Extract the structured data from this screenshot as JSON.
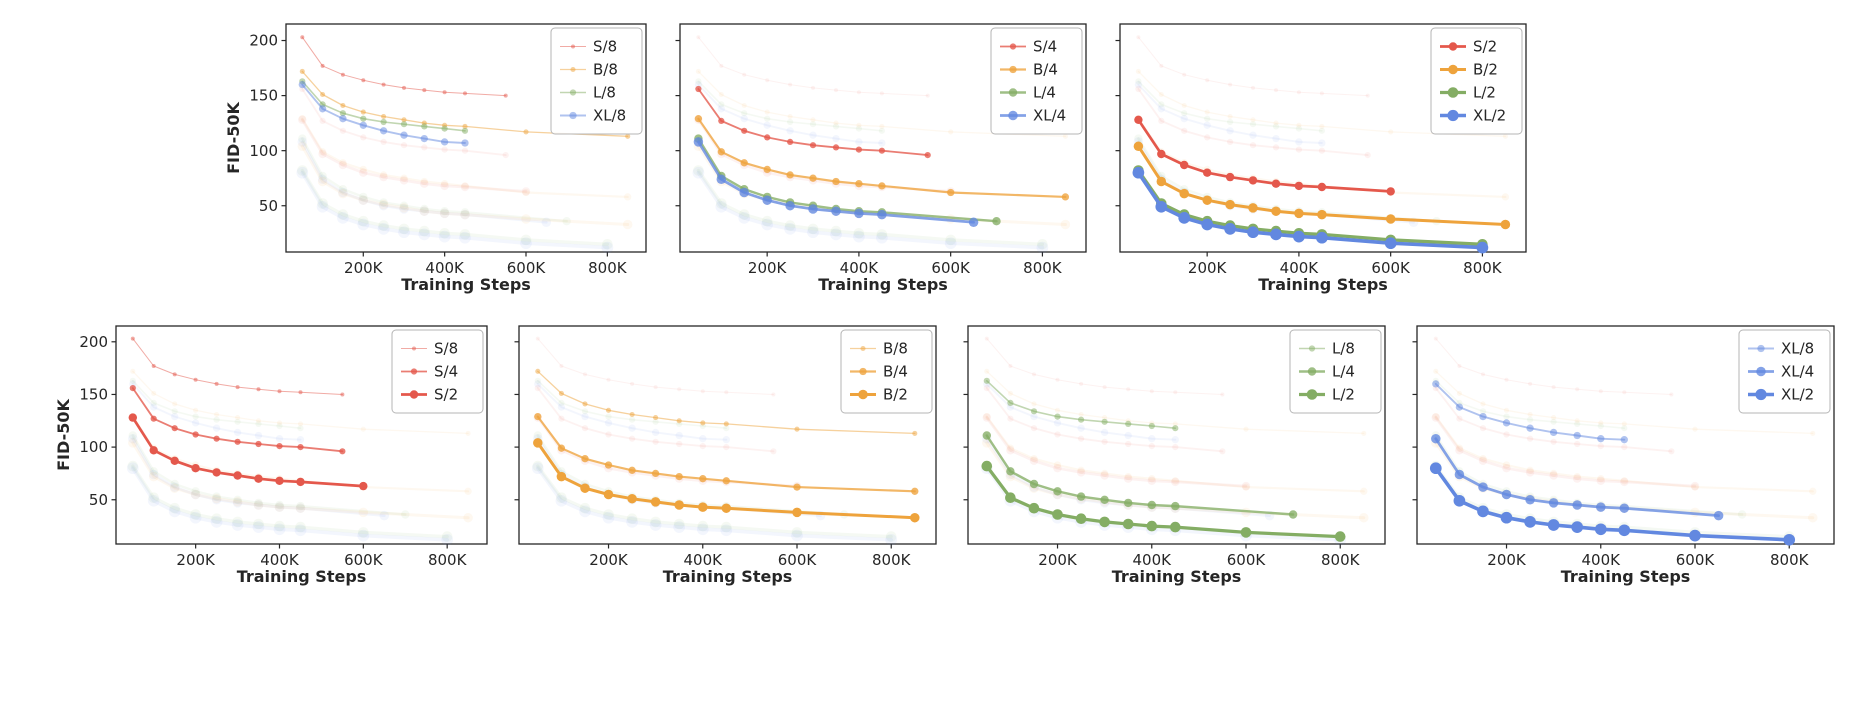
{
  "chart_data": {
    "type": "line",
    "title": "",
    "xlabel": "Training Steps",
    "ylabel": "FID-50K",
    "x_unit": "thousand training steps (K)",
    "xlim": [
      10,
      895
    ],
    "ylim": [
      8,
      215
    ],
    "xticks": [
      200,
      400,
      600,
      800
    ],
    "xtick_labels": [
      "200K",
      "400K",
      "600K",
      "800K"
    ],
    "yticks": [
      50,
      100,
      150,
      200
    ],
    "ytick_labels": [
      "50",
      "100",
      "150",
      "200"
    ],
    "grid": false,
    "legend_position": "upper right",
    "model_colors": {
      "S": "#e4584c",
      "B": "#eea33c",
      "L": "#84ad64",
      "XL": "#6288e0"
    },
    "series": [
      {
        "name": "S/8",
        "model": "S",
        "patch": 8,
        "color": "#e4584c",
        "x": [
          50,
          100,
          150,
          200,
          250,
          300,
          350,
          400,
          450,
          550
        ],
        "y": [
          203,
          177,
          169,
          164,
          160,
          157,
          155,
          153,
          152,
          150
        ]
      },
      {
        "name": "B/8",
        "model": "B",
        "patch": 8,
        "color": "#eea33c",
        "x": [
          50,
          100,
          150,
          200,
          250,
          300,
          350,
          400,
          450,
          600,
          850
        ],
        "y": [
          172,
          151,
          141,
          135,
          131,
          128,
          125,
          123,
          122,
          117,
          113
        ]
      },
      {
        "name": "L/8",
        "model": "L",
        "patch": 8,
        "color": "#84ad64",
        "x": [
          50,
          100,
          150,
          200,
          250,
          300,
          350,
          400,
          450
        ],
        "y": [
          163,
          142,
          134,
          129,
          126,
          124,
          122,
          120,
          118
        ]
      },
      {
        "name": "XL/8",
        "model": "XL",
        "patch": 8,
        "color": "#6288e0",
        "x": [
          50,
          100,
          150,
          200,
          250,
          300,
          350,
          400,
          450
        ],
        "y": [
          160,
          138,
          129,
          123,
          118,
          114,
          111,
          108,
          107
        ]
      },
      {
        "name": "S/4",
        "model": "S",
        "patch": 4,
        "color": "#e4584c",
        "x": [
          50,
          100,
          150,
          200,
          250,
          300,
          350,
          400,
          450,
          550
        ],
        "y": [
          156,
          127,
          118,
          112,
          108,
          105,
          103,
          101,
          100,
          96
        ]
      },
      {
        "name": "B/4",
        "model": "B",
        "patch": 4,
        "color": "#eea33c",
        "x": [
          50,
          100,
          150,
          200,
          250,
          300,
          350,
          400,
          450,
          600,
          850
        ],
        "y": [
          129,
          99,
          89,
          83,
          78,
          75,
          72,
          70,
          68,
          62,
          58
        ]
      },
      {
        "name": "L/4",
        "model": "L",
        "patch": 4,
        "color": "#84ad64",
        "x": [
          50,
          100,
          150,
          200,
          250,
          300,
          350,
          400,
          450,
          700
        ],
        "y": [
          111,
          77,
          65,
          58,
          53,
          50,
          47,
          45,
          44,
          36
        ]
      },
      {
        "name": "XL/4",
        "model": "XL",
        "patch": 4,
        "color": "#6288e0",
        "x": [
          50,
          100,
          150,
          200,
          250,
          300,
          350,
          400,
          450,
          650
        ],
        "y": [
          108,
          74,
          62,
          55,
          50,
          47,
          45,
          43,
          42,
          35
        ]
      },
      {
        "name": "S/2",
        "model": "S",
        "patch": 2,
        "color": "#e4584c",
        "x": [
          50,
          100,
          150,
          200,
          250,
          300,
          350,
          400,
          450,
          600
        ],
        "y": [
          128,
          97,
          87,
          80,
          76,
          73,
          70,
          68,
          67,
          63
        ]
      },
      {
        "name": "B/2",
        "model": "B",
        "patch": 2,
        "color": "#eea33c",
        "x": [
          50,
          100,
          150,
          200,
          250,
          300,
          350,
          400,
          450,
          600,
          850
        ],
        "y": [
          104,
          72,
          61,
          55,
          51,
          48,
          45,
          43,
          42,
          38,
          33
        ]
      },
      {
        "name": "L/2",
        "model": "L",
        "patch": 2,
        "color": "#84ad64",
        "x": [
          50,
          100,
          150,
          200,
          250,
          300,
          350,
          400,
          450,
          600,
          800
        ],
        "y": [
          82,
          52,
          42,
          36,
          32,
          29,
          27,
          25,
          24,
          19,
          15
        ]
      },
      {
        "name": "XL/2",
        "model": "XL",
        "patch": 2,
        "color": "#6288e0",
        "x": [
          50,
          100,
          150,
          200,
          250,
          300,
          350,
          400,
          450,
          600,
          800
        ],
        "y": [
          80,
          49,
          39,
          33,
          29,
          26,
          24,
          22,
          21,
          16,
          12
        ]
      }
    ],
    "panels": [
      {
        "name": "panel-patch-8",
        "row": "top",
        "legend": [
          "S/8",
          "B/8",
          "L/8",
          "XL/8"
        ],
        "show_y_axis": true
      },
      {
        "name": "panel-patch-4",
        "row": "top",
        "legend": [
          "S/4",
          "B/4",
          "L/4",
          "XL/4"
        ],
        "show_y_axis": false
      },
      {
        "name": "panel-patch-2",
        "row": "top",
        "legend": [
          "S/2",
          "B/2",
          "L/2",
          "XL/2"
        ],
        "show_y_axis": false
      },
      {
        "name": "panel-model-S",
        "row": "bottom",
        "legend": [
          "S/8",
          "S/4",
          "S/2"
        ],
        "show_y_axis": true
      },
      {
        "name": "panel-model-B",
        "row": "bottom",
        "legend": [
          "B/8",
          "B/4",
          "B/2"
        ],
        "show_y_axis": false
      },
      {
        "name": "panel-model-L",
        "row": "bottom",
        "legend": [
          "L/8",
          "L/4",
          "L/2"
        ],
        "show_y_axis": false
      },
      {
        "name": "panel-model-XL",
        "row": "bottom",
        "legend": [
          "XL/8",
          "XL/4",
          "XL/2"
        ],
        "show_y_axis": false
      }
    ]
  }
}
